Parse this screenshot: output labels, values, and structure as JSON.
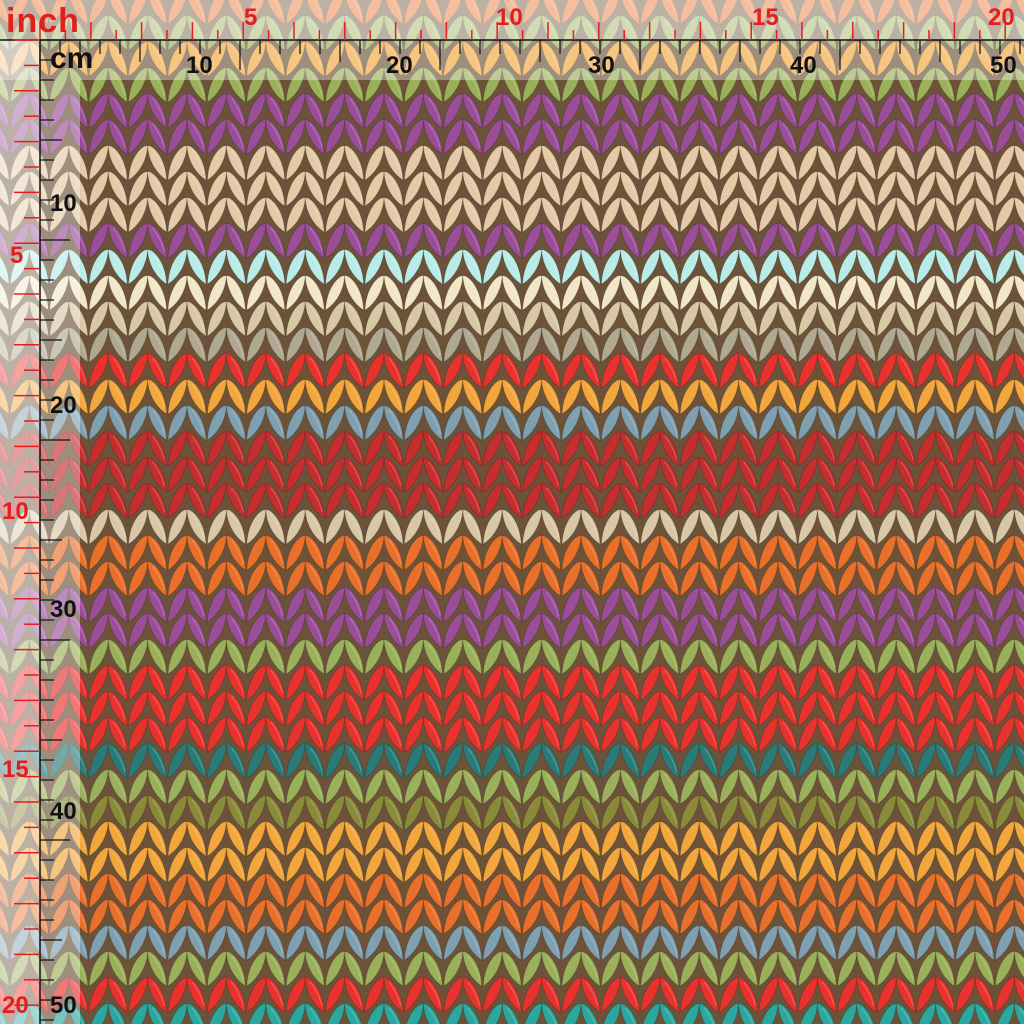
{
  "ruler": {
    "inch_unit": "inch",
    "cm_unit": "cm",
    "inch_ticks_top": [
      "5",
      "10",
      "15",
      "20"
    ],
    "inch_ticks_left": [
      "5",
      "10",
      "15",
      "20"
    ],
    "cm_ticks_top": [
      "10",
      "20",
      "30",
      "40",
      "50"
    ],
    "cm_ticks_left": [
      "10",
      "20",
      "30",
      "40",
      "50"
    ],
    "inch_color": "#e41e1e",
    "cm_color": "#111111"
  },
  "pattern": {
    "name": "knit-stitch-stripes",
    "background": "#6b5239",
    "rows": [
      "#e8702a",
      "#9bb05a",
      "#f2a63c",
      "#9bb05a",
      "#9a4e98",
      "#9a4e98",
      "#e6c9a6",
      "#e6c9a6",
      "#e6c9a6",
      "#9a4e98",
      "#b9ece8",
      "#f2e6c9",
      "#d8c8a6",
      "#b0a890",
      "#e8322e",
      "#f2a63c",
      "#7fa0b0",
      "#c42e2e",
      "#c42e2e",
      "#c42e2e",
      "#d8c8a6",
      "#e8702a",
      "#e8702a",
      "#9a4e98",
      "#9a4e98",
      "#9bb05a",
      "#e8322e",
      "#e8322e",
      "#e8322e",
      "#2a7a78",
      "#9bb05a",
      "#8a8a3a",
      "#f2a63c",
      "#f2a63c",
      "#e8702a",
      "#e8702a",
      "#7fa0b0",
      "#9bb05a",
      "#e8322e",
      "#2aa8a0",
      "#2aa8a0"
    ]
  }
}
